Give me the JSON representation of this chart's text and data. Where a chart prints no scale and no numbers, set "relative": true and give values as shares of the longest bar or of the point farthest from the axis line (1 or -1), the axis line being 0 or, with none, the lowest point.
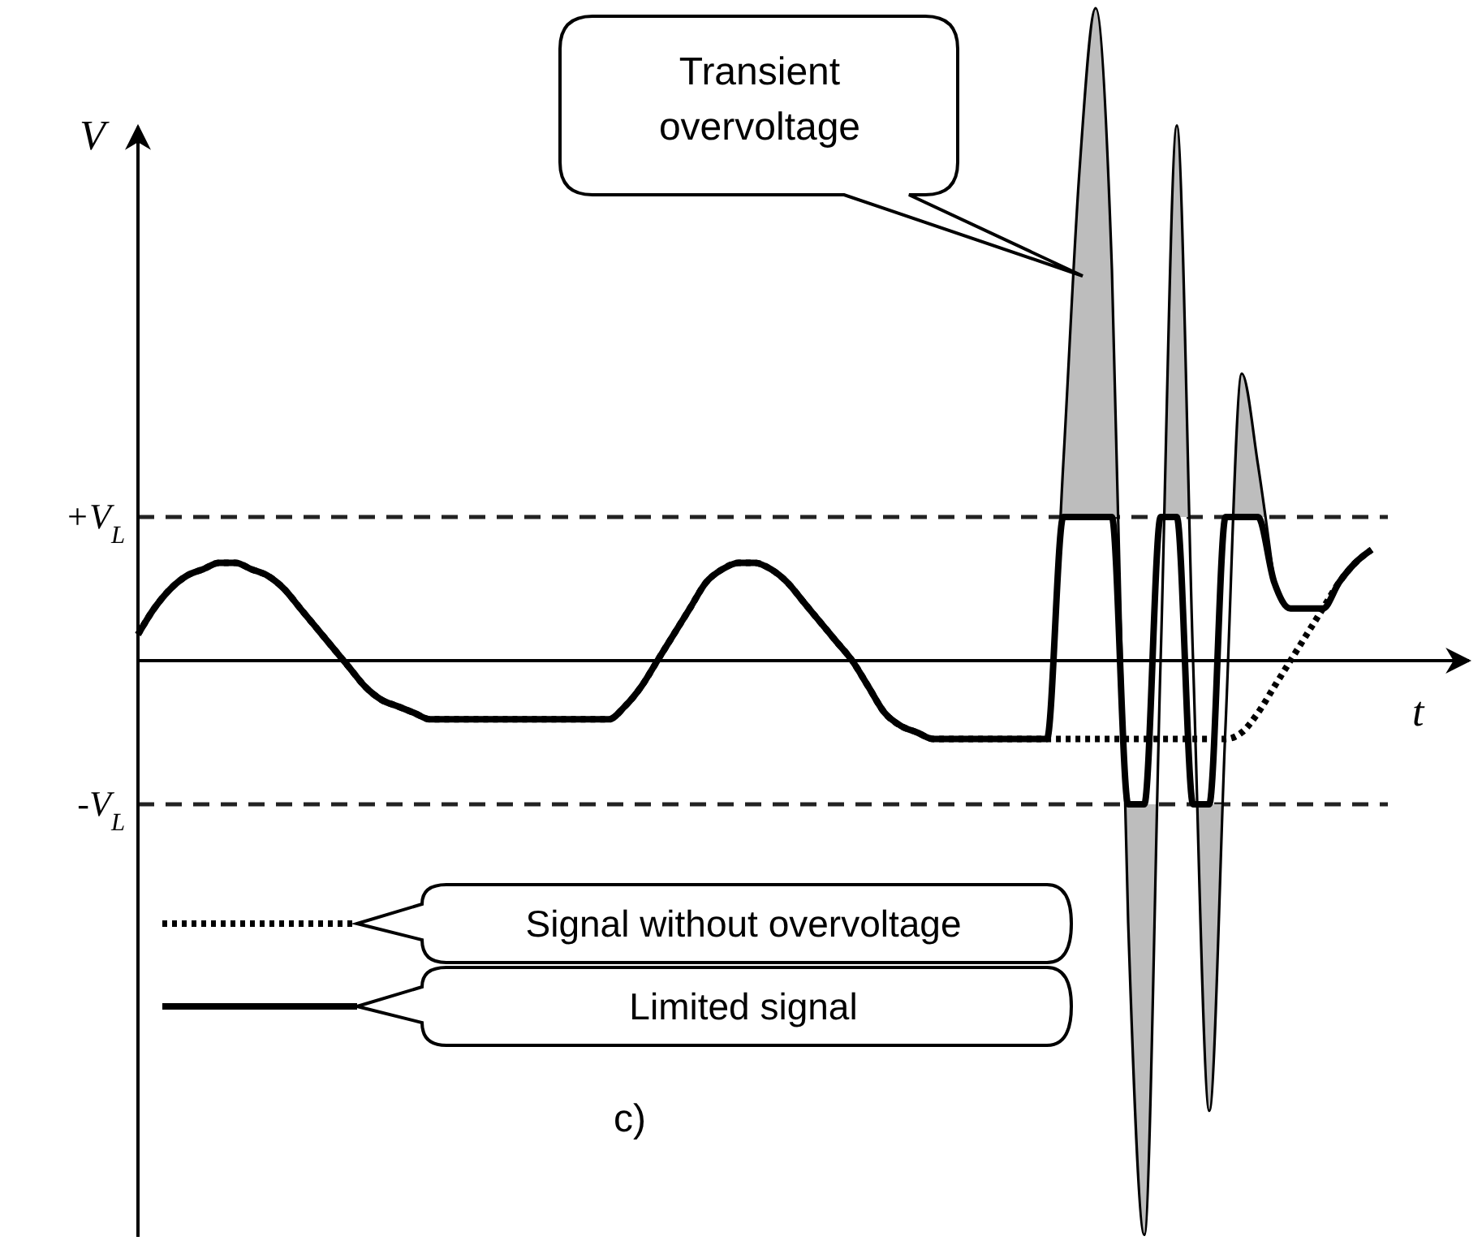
{
  "chart_data": {
    "type": "line",
    "relative": true,
    "xlabel": "t",
    "ylabel": "V",
    "grid": false,
    "legend": "bottom left",
    "marker": "none",
    "categories": [
      null,
      null,
      null,
      null,
      null,
      null,
      null,
      null,
      null,
      null,
      null,
      null,
      null,
      null,
      null,
      null,
      null,
      null,
      null,
      null,
      null,
      null,
      null,
      null,
      null,
      null,
      null,
      null,
      null,
      null,
      null,
      null,
      null,
      null,
      null,
      null,
      null,
      null,
      null,
      null,
      null,
      null,
      null,
      null,
      null,
      null,
      null,
      null,
      null,
      null,
      null,
      null,
      null,
      null,
      null,
      null,
      null,
      null,
      null,
      null,
      null,
      null,
      null,
      null,
      null,
      null,
      null,
      null,
      null,
      null,
      null,
      null,
      null,
      null,
      null,
      null,
      null
    ],
    "series": [
      {
        "type": "area",
        "color": "#bdbdbd",
        "line_style": "solid",
        "values": [
          null,
          null,
          null,
          null,
          null,
          null,
          null,
          null,
          null,
          null,
          null,
          null,
          null,
          null,
          null,
          null,
          null,
          null,
          null,
          null,
          null,
          null,
          null,
          null,
          null,
          null,
          null,
          null,
          null,
          null,
          null,
          null,
          null,
          null,
          null,
          null,
          null,
          null,
          null,
          null,
          null,
          null,
          null,
          null,
          null,
          null,
          null,
          null,
          null,
          null,
          null,
          null,
          null,
          null,
          null,
          -0.12,
          -0.12,
          0.3,
          0.75,
          1.0,
          0.6,
          -0.4,
          -0.88,
          0,
          0.82,
          0,
          -0.69,
          -0.1,
          0.44,
          0.3,
          0.12,
          null,
          null,
          null,
          null,
          null,
          null
        ]
      },
      {
        "name": "Signal without overvoltage",
        "color": "#000000",
        "line_style": "dotted",
        "values": [
          0.04,
          0.08,
          0.11,
          0.13,
          0.14,
          0.15,
          0.15,
          0.14,
          0.13,
          0.11,
          0.08,
          0.05,
          0.02,
          -0.01,
          -0.04,
          -0.06,
          -0.07,
          -0.08,
          -0.09,
          -0.09,
          -0.09,
          -0.09,
          -0.09,
          -0.09,
          -0.09,
          -0.09,
          -0.09,
          -0.09,
          -0.09,
          -0.09,
          -0.07,
          -0.04,
          0,
          0.04,
          0.08,
          0.12,
          0.14,
          0.15,
          0.15,
          0.14,
          0.12,
          0.09,
          0.06,
          0.03,
          0,
          -0.04,
          -0.08,
          -0.1,
          -0.11,
          -0.12,
          -0.12,
          -0.12,
          -0.12,
          -0.12,
          -0.12,
          -0.12,
          -0.12,
          -0.12,
          -0.12,
          -0.12,
          -0.12,
          -0.12,
          -0.12,
          -0.12,
          -0.12,
          -0.12,
          -0.12,
          -0.12,
          -0.11,
          -0.08,
          -0.04,
          0,
          0.04,
          0.08,
          0.12,
          0.15,
          0.17
        ]
      },
      {
        "name": "Limited signal",
        "color": "#000000",
        "line_style": "solid",
        "values": [
          0.04,
          0.08,
          0.11,
          0.13,
          0.14,
          0.15,
          0.15,
          0.14,
          0.13,
          0.11,
          0.08,
          0.05,
          0.02,
          -0.01,
          -0.04,
          -0.06,
          -0.07,
          -0.08,
          -0.09,
          -0.09,
          -0.09,
          -0.09,
          -0.09,
          -0.09,
          -0.09,
          -0.09,
          -0.09,
          -0.09,
          -0.09,
          -0.09,
          -0.07,
          -0.04,
          0,
          0.04,
          0.08,
          0.12,
          0.14,
          0.15,
          0.15,
          0.14,
          0.12,
          0.09,
          0.06,
          0.03,
          0,
          -0.04,
          -0.08,
          -0.1,
          -0.11,
          -0.12,
          -0.12,
          -0.12,
          -0.12,
          -0.12,
          -0.12,
          -0.12,
          -0.12,
          0.22,
          0.22,
          0.22,
          0.22,
          -0.22,
          -0.22,
          0.22,
          0.22,
          -0.22,
          -0.22,
          0.22,
          0.22,
          0.22,
          0.12,
          0.08,
          0.08,
          0.08,
          0.12,
          0.15,
          0.17
        ]
      }
    ],
    "ref_lines": [
      {
        "axis": "y",
        "value": 0.22,
        "label": "+V$_{L}$",
        "line_style": "dashed"
      },
      {
        "axis": "y",
        "value": -0.22,
        "label": "-V$_{L}$",
        "line_style": "dashed"
      }
    ],
    "annotations": [
      "Transient overvoltage",
      "c)"
    ]
  }
}
